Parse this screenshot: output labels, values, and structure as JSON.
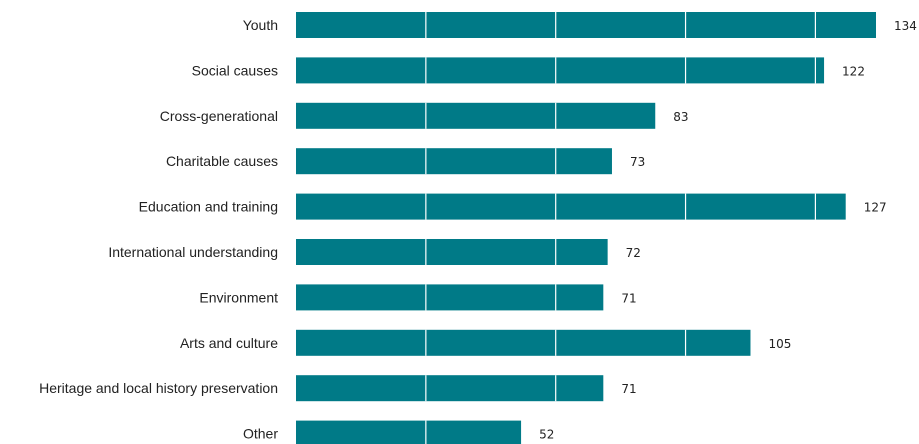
{
  "chart_data": {
    "type": "bar",
    "orientation": "horizontal",
    "categories": [
      "Youth",
      "Social causes",
      "Cross-generational",
      "Charitable causes",
      "Education and training",
      "International understanding",
      "Environment",
      "Arts and culture",
      "Heritage and local history preservation",
      "Other"
    ],
    "values": [
      134,
      122,
      83,
      73,
      127,
      72,
      71,
      105,
      71,
      52
    ],
    "xlim": [
      0,
      134
    ],
    "gridlines_at": [
      30,
      60,
      90,
      120
    ],
    "grid": true,
    "title": "",
    "xlabel": "",
    "ylabel": "",
    "colors": {
      "bar": "#007a87",
      "gridline": "#ffffff",
      "text": "#222222"
    }
  }
}
